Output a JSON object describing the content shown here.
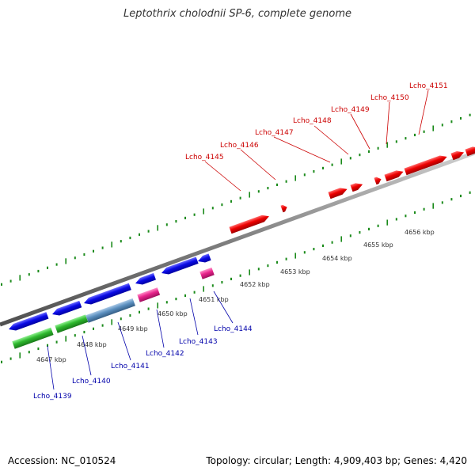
{
  "title": "Leptothrix cholodnii SP-6, complete genome",
  "footer": {
    "accession": "Accession: NC_010524",
    "summary": "Topology: circular; Length: 4,909,403 bp; Genes: 4,420"
  },
  "colors": {
    "backbone": "#808080",
    "tick": "#1a8a1a",
    "forward_gene": "#e60000",
    "reverse_gene": "#0a0ae6",
    "green_feature": "#2eb82e",
    "steel_feature": "#5b8fbf",
    "pink_feature": "#e8248c",
    "forward_label": "#cc0000",
    "reverse_label": "#0000aa",
    "scale_label": "#333333"
  },
  "scale_labels": [
    "4647 kbp",
    "4648 kbp",
    "4649 kbp",
    "4650 kbp",
    "4651 kbp",
    "4652 kbp",
    "4653 kbp",
    "4654 kbp",
    "4655 kbp",
    "4656 kbp"
  ],
  "gene_labels": {
    "forward": [
      "Lcho_4145",
      "Lcho_4146",
      "Lcho_4147",
      "Lcho_4148",
      "Lcho_4149",
      "Lcho_4150",
      "Lcho_4151"
    ],
    "reverse": [
      "Lcho_4139",
      "Lcho_4140",
      "Lcho_4141",
      "Lcho_4142",
      "Lcho_4143",
      "Lcho_4144"
    ]
  }
}
